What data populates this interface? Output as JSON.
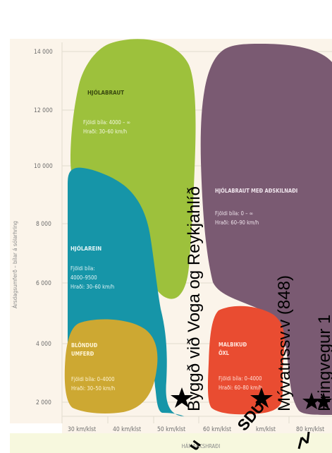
{
  "chart": {
    "y_axis_title": "Ársdagsumferð – bílar á sólarhring",
    "x_axis_title": "HÁMARKSHRAÐI",
    "y_ticks": [
      "14 000",
      "12 000",
      "10 000",
      "8 000",
      "6 000",
      "4 000",
      "2 000"
    ],
    "x_ticks": [
      "30 km/klst",
      "40 km/klst",
      "50 km/klst",
      "60 km/klst",
      "km/klst",
      "80 km/klst"
    ]
  },
  "zones": {
    "hjolabraut": {
      "title": "HJÓLABRAUT",
      "line1": "Fjöldi bíla: 4000 – ∞",
      "line2": "Hraði: 30–60 km/h",
      "color": "#9dc13c"
    },
    "hjolabraut_adskilnadi": {
      "title": "HJÓLABRAUT MEÐ AÐSKILNAÐI",
      "line1": "Fjöldi bíla: 0 – ∞",
      "line2": "Hraði: 60–90 km/h",
      "color": "#7a5a72"
    },
    "hjolarein": {
      "title": "HJÓLAREIN",
      "line1": "Fjöldi bíla:",
      "line2": "4000–9500",
      "line3": "Hraði: 30–60 km/h",
      "color": "#1695a8"
    },
    "blondud": {
      "title1": "BLÖNDUÐ",
      "title2": "UMFERÐ",
      "line1": "Fjöldi bíla: 0–4000",
      "line2": "Hraði: 30–50 km/h",
      "color": "#cda832"
    },
    "malbikud": {
      "title1": "MALBIKUÐ",
      "title2": "ÖXL",
      "line1": "Fjöldi bíla: 0–4000",
      "line2": "Hraði: 60–80 km/h",
      "color": "#e94c31"
    }
  },
  "annotations": {
    "vogar": "Byggð við Voga og Reykjahlíð",
    "myvatn": "Mývatnssv.v (848)",
    "hringvegur": "Hringvegur 1",
    "sdu": "SDU",
    "bottom_left": "u"
  }
}
